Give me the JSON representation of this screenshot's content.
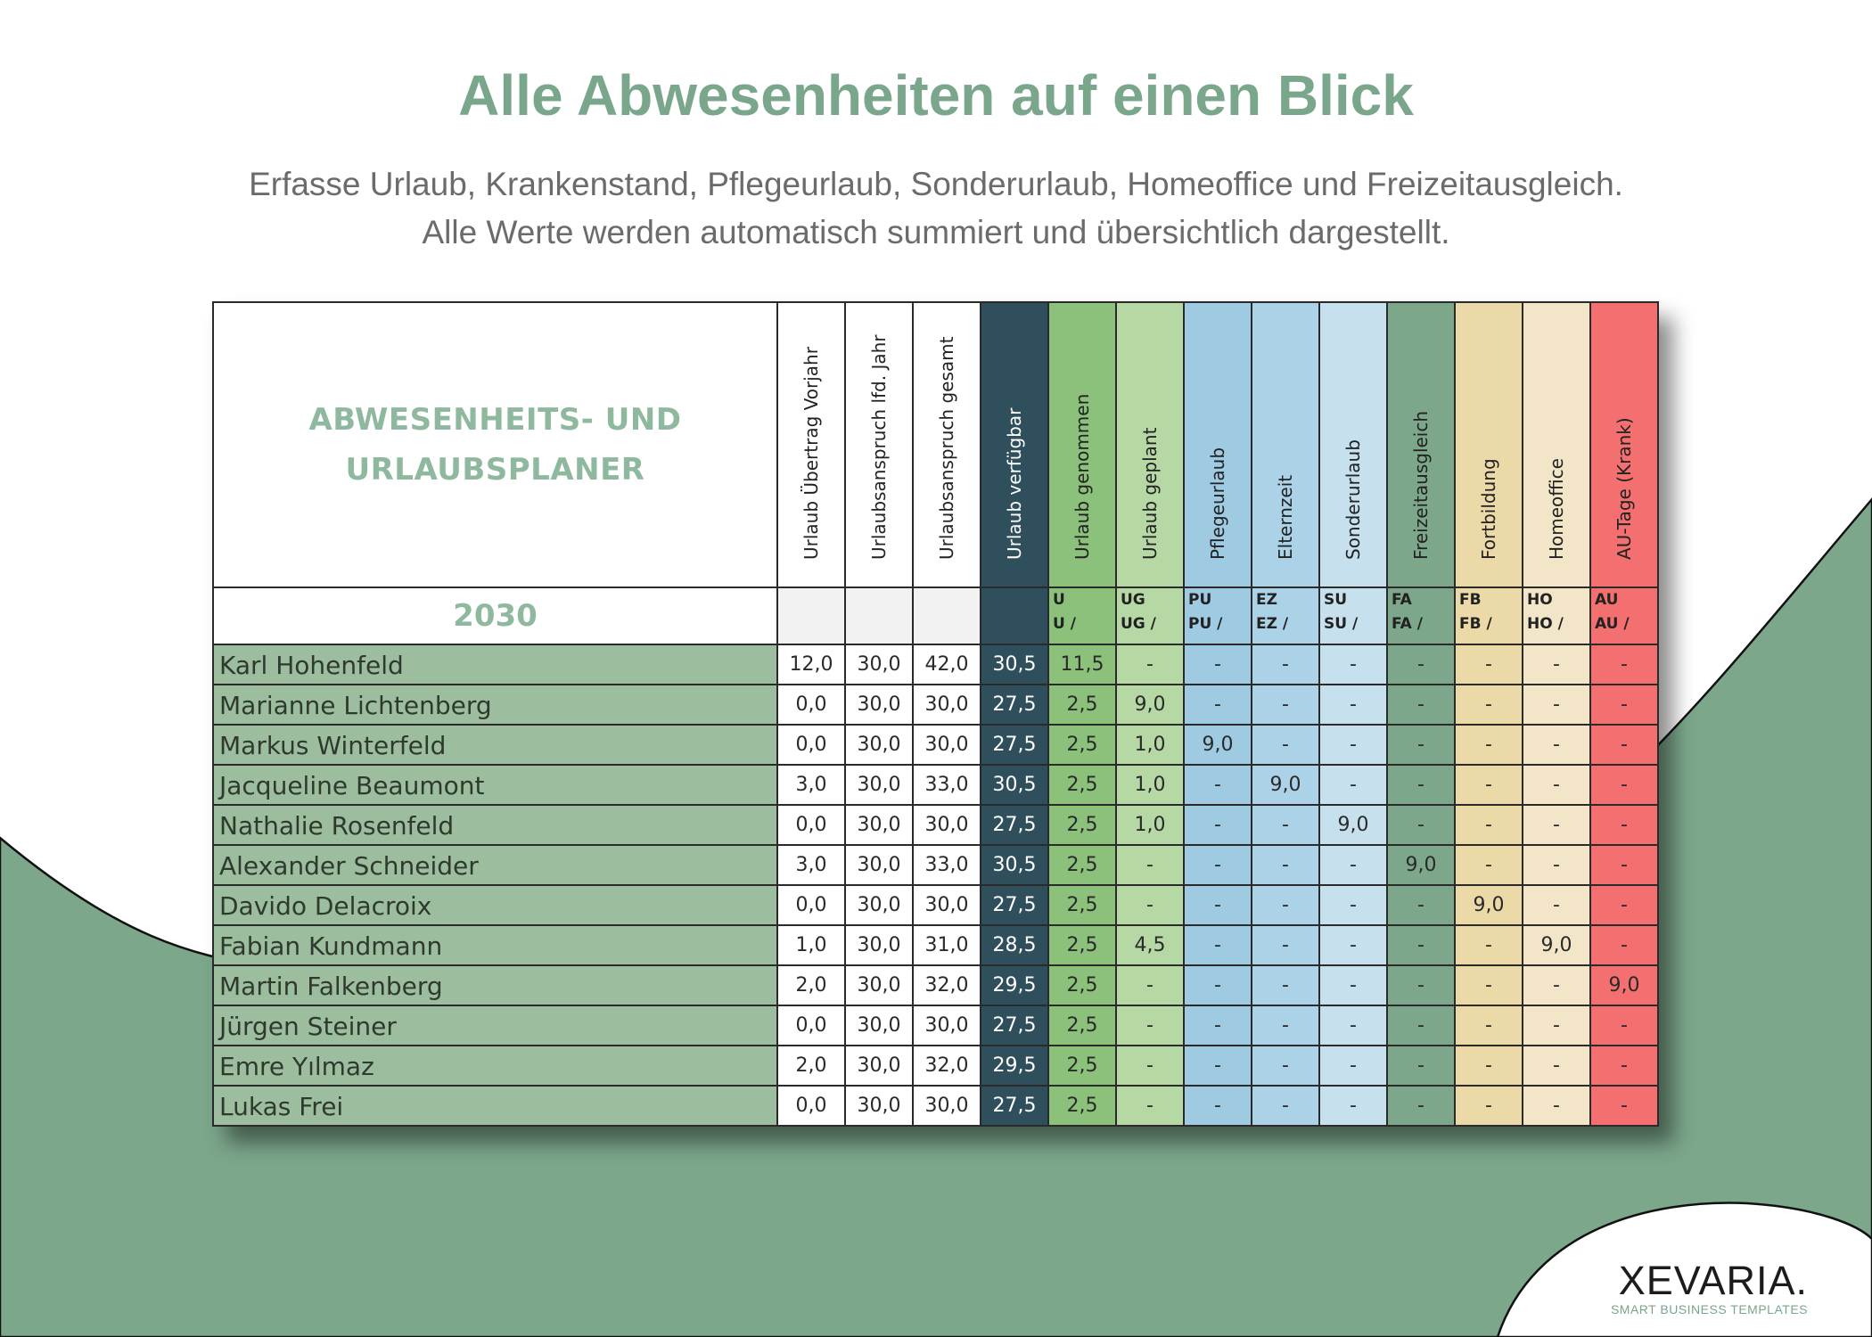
{
  "hero": {
    "title": "Alle Abwesenheiten auf einen Blick",
    "subtitle_line1": "Erfasse Urlaub, Krankenstand, Pflegeurlaub, Sonderurlaub, Homeoffice und Freizeitausgleich.",
    "subtitle_line2": "Alle Werte werden automatisch summiert und übersichtlich dargestellt."
  },
  "planner": {
    "title_line1": "ABWESENHEITS- UND",
    "title_line2": "URLAUBSPLANER",
    "year": "2030",
    "columns": [
      {
        "label": "Urlaub Übertrag Vorjahr",
        "code1": "",
        "code2": "",
        "color": "#ffffff",
        "sub_color": "#f2f2f2"
      },
      {
        "label": "Urlaubsanspruch lfd. Jahr",
        "code1": "",
        "code2": "",
        "color": "#ffffff",
        "sub_color": "#f2f2f2"
      },
      {
        "label": "Urlaubsanspruch gesamt",
        "code1": "",
        "code2": "",
        "color": "#ffffff",
        "sub_color": "#f2f2f2"
      },
      {
        "label": "Urlaub verfügbar",
        "code1": "",
        "code2": "",
        "color": "#2f4f5c",
        "sub_color": "#2f4f5c"
      },
      {
        "label": "Urlaub genommen",
        "code1": "U",
        "code2": "U /",
        "color": "#8bc17a",
        "sub_color": "#8bc17a"
      },
      {
        "label": "Urlaub  geplant",
        "code1": "UG",
        "code2": "UG /",
        "color": "#b5d8a4",
        "sub_color": "#b5d8a4"
      },
      {
        "label": "Pflegeurlaub",
        "code1": "PU",
        "code2": "PU /",
        "color": "#9fcbe2",
        "sub_color": "#9fcbe2"
      },
      {
        "label": "Elternzeit",
        "code1": "EZ",
        "code2": "EZ /",
        "color": "#abd2e6",
        "sub_color": "#abd2e6"
      },
      {
        "label": "Sonderurlaub",
        "code1": "SU",
        "code2": "SU /",
        "color": "#c6e0ee",
        "sub_color": "#c6e0ee"
      },
      {
        "label": "Freizeitausgleich",
        "code1": "FA",
        "code2": "FA /",
        "color": "#7ca78b",
        "sub_color": "#7ca78b"
      },
      {
        "label": "Fortbildung",
        "code1": "FB",
        "code2": "FB /",
        "color": "#ecd9a8",
        "sub_color": "#ecd9a8"
      },
      {
        "label": "Homeoffice",
        "code1": "HO",
        "code2": "HO /",
        "color": "#f3e6c8",
        "sub_color": "#f3e6c8"
      },
      {
        "label": "AU-Tage (Krank)",
        "code1": "AU",
        "code2": "AU /",
        "color": "#f46f6f",
        "sub_color": "#f46f6f"
      }
    ],
    "rows": [
      {
        "name": "Karl Hohenfeld",
        "values": [
          "12,0",
          "30,0",
          "42,0",
          "30,5",
          "11,5",
          "-",
          "-",
          "-",
          "-",
          "-",
          "-",
          "-",
          "-"
        ]
      },
      {
        "name": "Marianne Lichtenberg",
        "values": [
          "0,0",
          "30,0",
          "30,0",
          "27,5",
          "2,5",
          "9,0",
          "-",
          "-",
          "-",
          "-",
          "-",
          "-",
          "-"
        ]
      },
      {
        "name": "Markus Winterfeld",
        "values": [
          "0,0",
          "30,0",
          "30,0",
          "27,5",
          "2,5",
          "1,0",
          "9,0",
          "-",
          "-",
          "-",
          "-",
          "-",
          "-"
        ]
      },
      {
        "name": "Jacqueline Beaumont",
        "values": [
          "3,0",
          "30,0",
          "33,0",
          "30,5",
          "2,5",
          "1,0",
          "-",
          "9,0",
          "-",
          "-",
          "-",
          "-",
          "-"
        ]
      },
      {
        "name": "Nathalie Rosenfeld",
        "values": [
          "0,0",
          "30,0",
          "30,0",
          "27,5",
          "2,5",
          "1,0",
          "-",
          "-",
          "9,0",
          "-",
          "-",
          "-",
          "-"
        ]
      },
      {
        "name": "Alexander Schneider",
        "values": [
          "3,0",
          "30,0",
          "33,0",
          "30,5",
          "2,5",
          "-",
          "-",
          "-",
          "-",
          "9,0",
          "-",
          "-",
          "-"
        ]
      },
      {
        "name": "Davido Delacroix",
        "values": [
          "0,0",
          "30,0",
          "30,0",
          "27,5",
          "2,5",
          "-",
          "-",
          "-",
          "-",
          "-",
          "9,0",
          "-",
          "-"
        ]
      },
      {
        "name": "Fabian Kundmann",
        "values": [
          "1,0",
          "30,0",
          "31,0",
          "28,5",
          "2,5",
          "4,5",
          "-",
          "-",
          "-",
          "-",
          "-",
          "9,0",
          "-"
        ]
      },
      {
        "name": "Martin Falkenberg",
        "values": [
          "2,0",
          "30,0",
          "32,0",
          "29,5",
          "2,5",
          "-",
          "-",
          "-",
          "-",
          "-",
          "-",
          "-",
          "9,0"
        ]
      },
      {
        "name": "Jürgen Steiner",
        "values": [
          "0,0",
          "30,0",
          "30,0",
          "27,5",
          "2,5",
          "-",
          "-",
          "-",
          "-",
          "-",
          "-",
          "-",
          "-"
        ]
      },
      {
        "name": "Emre Yılmaz",
        "values": [
          "2,0",
          "30,0",
          "32,0",
          "29,5",
          "2,5",
          "-",
          "-",
          "-",
          "-",
          "-",
          "-",
          "-",
          "-"
        ]
      },
      {
        "name": "Lukas Frei",
        "values": [
          "0,0",
          "30,0",
          "30,0",
          "27,5",
          "2,5",
          "-",
          "-",
          "-",
          "-",
          "-",
          "-",
          "-",
          "-"
        ]
      }
    ]
  },
  "brand": {
    "name": "XEVARIA.",
    "tagline": "SMART BUSINESS TEMPLATES"
  },
  "colors": {
    "accent_green": "#7aa68c",
    "name_column": "#9dbd9f",
    "background_wave": "#7ca78b"
  }
}
